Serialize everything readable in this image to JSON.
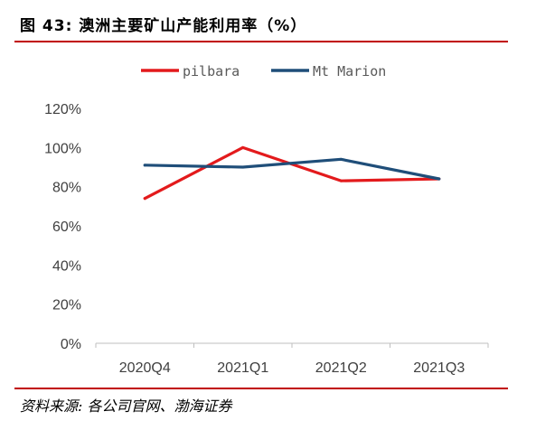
{
  "header": {
    "title": "图 43: 澳洲主要矿山产能利用率（%）"
  },
  "footer": {
    "source": "资料来源: 各公司官网、渤海证券"
  },
  "chart_data": {
    "type": "line",
    "categories": [
      "2020Q4",
      "2021Q1",
      "2021Q2",
      "2021Q3"
    ],
    "series": [
      {
        "name": "pilbara",
        "color": "#e31a1c",
        "values": [
          74,
          100,
          83,
          84
        ]
      },
      {
        "name": "Mt Marion",
        "color": "#1f4e79",
        "values": [
          91,
          90,
          94,
          84
        ]
      }
    ],
    "y_ticks": [
      "0%",
      "20%",
      "40%",
      "60%",
      "80%",
      "100%",
      "120%"
    ],
    "ylim": [
      0,
      120
    ],
    "grid": false,
    "legend_position": "top"
  }
}
